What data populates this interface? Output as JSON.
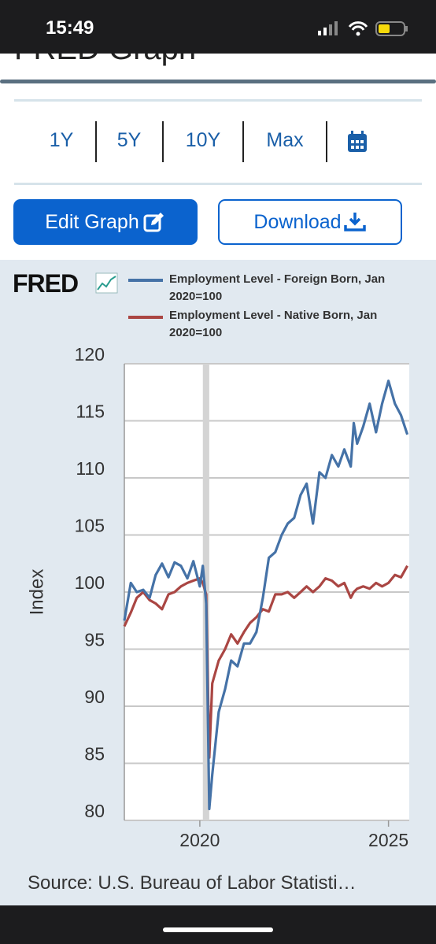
{
  "status": {
    "time": "15:49"
  },
  "header": {
    "title": "FRED Graph"
  },
  "ranges": [
    "1Y",
    "5Y",
    "10Y",
    "Max"
  ],
  "buttons": {
    "edit": "Edit Graph",
    "download": "Download"
  },
  "logo": "FRED",
  "source": "Source: U.S. Bureau of Labor Statisti…",
  "chart_data": {
    "type": "line",
    "y_label": "Index",
    "x": [
      2018.0,
      2018.17,
      2018.33,
      2018.5,
      2018.67,
      2018.83,
      2019.0,
      2019.17,
      2019.33,
      2019.5,
      2019.67,
      2019.83,
      2020.0,
      2020.08,
      2020.17,
      2020.25,
      2020.33,
      2020.5,
      2020.67,
      2020.83,
      2021.0,
      2021.17,
      2021.33,
      2021.5,
      2021.67,
      2021.83,
      2022.0,
      2022.17,
      2022.33,
      2022.5,
      2022.67,
      2022.83,
      2023.0,
      2023.17,
      2023.33,
      2023.5,
      2023.67,
      2023.83,
      2024.0,
      2024.08,
      2024.17,
      2024.33,
      2024.5,
      2024.67,
      2024.83,
      2025.0,
      2025.17,
      2025.33,
      2025.5
    ],
    "series": [
      {
        "name": "Employment Level - Foreign Born, Jan 2020=100",
        "color": "#4572a7",
        "values": [
          97.5,
          100.8,
          100.0,
          100.2,
          99.5,
          101.5,
          102.5,
          101.3,
          102.6,
          102.3,
          101.2,
          102.7,
          100.5,
          102.3,
          99.0,
          81.0,
          84.0,
          89.5,
          91.5,
          94.0,
          93.5,
          95.5,
          95.5,
          96.5,
          99.5,
          103.0,
          103.5,
          105.0,
          106.0,
          106.5,
          108.5,
          109.5,
          106.0,
          110.5,
          110.0,
          112.0,
          111.0,
          112.5,
          111.0,
          114.8,
          113.0,
          114.5,
          116.5,
          114.0,
          116.5,
          118.5,
          116.5,
          115.5,
          113.8
        ]
      },
      {
        "name": "Employment Level - Native Born, Jan 2020=100",
        "color": "#aa4643",
        "values": [
          97.0,
          98.2,
          99.5,
          100.0,
          99.3,
          99.0,
          98.5,
          99.8,
          100.0,
          100.5,
          100.8,
          101.0,
          101.2,
          100.8,
          99.8,
          85.5,
          92.0,
          94.0,
          95.0,
          96.3,
          95.5,
          96.5,
          97.3,
          97.8,
          98.5,
          98.3,
          99.8,
          99.8,
          100.0,
          99.5,
          100.0,
          100.5,
          100.0,
          100.5,
          101.2,
          101.0,
          100.5,
          100.8,
          99.5,
          100.0,
          100.3,
          100.5,
          100.3,
          100.8,
          100.5,
          100.8,
          101.5,
          101.3,
          102.3
        ]
      }
    ],
    "recession": [
      2020.08,
      2020.25
    ],
    "xlim": [
      2018.0,
      2025.55
    ],
    "xticks": [
      2020,
      2025
    ],
    "ylim": [
      80,
      120
    ],
    "yticks": [
      80,
      85,
      90,
      95,
      100,
      105,
      110,
      115,
      120
    ],
    "grid": true
  }
}
